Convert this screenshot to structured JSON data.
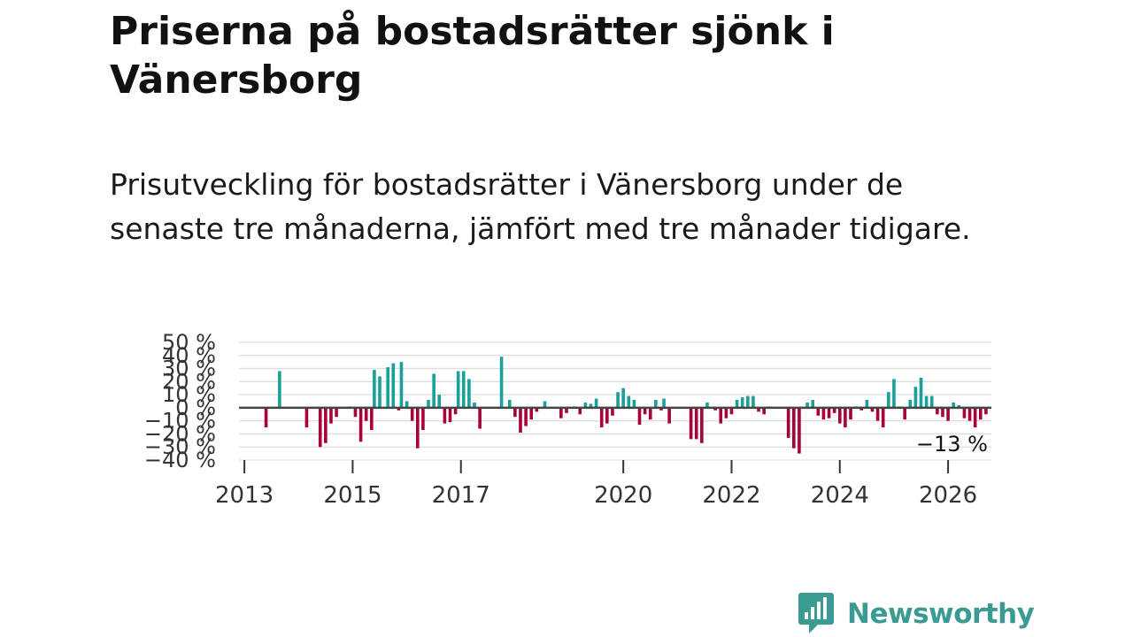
{
  "title": "Priserna på bostadsrätter sjönk i Vänersborg",
  "subtitle": "Prisutveckling för bostadsrätter i Vänersborg under de senaste tre månaderna, jämfört med tre månader tidigare.",
  "brand": {
    "name": "Newsworthy",
    "color": "#3a9b93",
    "icon": "newsworthy-logo-icon"
  },
  "colors": {
    "positive": "#1a9f99",
    "negative": "#a6003d",
    "grid": "#dddddd",
    "baseline": "#444444"
  },
  "chart_data": {
    "type": "bar",
    "title": "Priserna på bostadsrätter sjönk i Vänersborg",
    "ylabel": "",
    "xlabel": "",
    "ylim": [
      -40,
      50
    ],
    "xlim": [
      2012.9,
      2026.8
    ],
    "y_ticks": [
      {
        "value": 50,
        "label": "50 %"
      },
      {
        "value": 40,
        "label": "40 %"
      },
      {
        "value": 30,
        "label": "30 %"
      },
      {
        "value": 20,
        "label": "20 %"
      },
      {
        "value": 10,
        "label": "10 %"
      },
      {
        "value": 0,
        "label": "0 %"
      },
      {
        "value": -10,
        "label": "−10 %"
      },
      {
        "value": -20,
        "label": "−20 %"
      },
      {
        "value": -30,
        "label": "−30 %"
      },
      {
        "value": -40,
        "label": "−40 %"
      }
    ],
    "x_ticks": [
      {
        "value": 2013,
        "label": "2013"
      },
      {
        "value": 2015,
        "label": "2015"
      },
      {
        "value": 2017,
        "label": "2017"
      },
      {
        "value": 2020,
        "label": "2020"
      },
      {
        "value": 2022,
        "label": "2022"
      },
      {
        "value": 2024,
        "label": "2024"
      },
      {
        "value": 2026,
        "label": "2026"
      }
    ],
    "grid": true,
    "annotation": {
      "text": "−13 %",
      "date": 2026.17,
      "value": -13
    },
    "series": [
      {
        "name": "Prisutveckling",
        "points": [
          {
            "date": 2013.4,
            "value": -15
          },
          {
            "date": 2013.65,
            "value": 28
          },
          {
            "date": 2014.15,
            "value": -15
          },
          {
            "date": 2014.4,
            "value": -30
          },
          {
            "date": 2014.5,
            "value": -27
          },
          {
            "date": 2014.6,
            "value": -12
          },
          {
            "date": 2014.7,
            "value": -7
          },
          {
            "date": 2014.95,
            "value": 1
          },
          {
            "date": 2015.05,
            "value": -7
          },
          {
            "date": 2015.15,
            "value": -26
          },
          {
            "date": 2015.25,
            "value": -10
          },
          {
            "date": 2015.35,
            "value": -17
          },
          {
            "date": 2015.4,
            "value": 29
          },
          {
            "date": 2015.5,
            "value": 24
          },
          {
            "date": 2015.65,
            "value": 31
          },
          {
            "date": 2015.75,
            "value": 34
          },
          {
            "date": 2015.85,
            "value": -2
          },
          {
            "date": 2015.9,
            "value": 35
          },
          {
            "date": 2016.0,
            "value": 5
          },
          {
            "date": 2016.1,
            "value": -10
          },
          {
            "date": 2016.2,
            "value": -31
          },
          {
            "date": 2016.3,
            "value": -17
          },
          {
            "date": 2016.4,
            "value": 6
          },
          {
            "date": 2016.5,
            "value": 26
          },
          {
            "date": 2016.6,
            "value": 10
          },
          {
            "date": 2016.7,
            "value": -12
          },
          {
            "date": 2016.8,
            "value": -11
          },
          {
            "date": 2016.9,
            "value": -5
          },
          {
            "date": 2016.95,
            "value": 28
          },
          {
            "date": 2017.05,
            "value": 28
          },
          {
            "date": 2017.15,
            "value": 22
          },
          {
            "date": 2017.25,
            "value": 4
          },
          {
            "date": 2017.35,
            "value": -16
          },
          {
            "date": 2017.75,
            "value": 39
          },
          {
            "date": 2017.9,
            "value": 6
          },
          {
            "date": 2018.0,
            "value": -7
          },
          {
            "date": 2018.1,
            "value": -19
          },
          {
            "date": 2018.2,
            "value": -14
          },
          {
            "date": 2018.3,
            "value": -9
          },
          {
            "date": 2018.4,
            "value": -3
          },
          {
            "date": 2018.55,
            "value": 5
          },
          {
            "date": 2018.85,
            "value": -8
          },
          {
            "date": 2018.95,
            "value": -4
          },
          {
            "date": 2019.1,
            "value": 1
          },
          {
            "date": 2019.2,
            "value": -5
          },
          {
            "date": 2019.3,
            "value": 4
          },
          {
            "date": 2019.4,
            "value": 3
          },
          {
            "date": 2019.5,
            "value": 7
          },
          {
            "date": 2019.6,
            "value": -15
          },
          {
            "date": 2019.7,
            "value": -12
          },
          {
            "date": 2019.8,
            "value": -6
          },
          {
            "date": 2019.9,
            "value": 12
          },
          {
            "date": 2020.0,
            "value": 15
          },
          {
            "date": 2020.1,
            "value": 9
          },
          {
            "date": 2020.2,
            "value": 6
          },
          {
            "date": 2020.3,
            "value": -13
          },
          {
            "date": 2020.4,
            "value": -5
          },
          {
            "date": 2020.5,
            "value": -9
          },
          {
            "date": 2020.6,
            "value": 6
          },
          {
            "date": 2020.7,
            "value": -2
          },
          {
            "date": 2020.75,
            "value": 7
          },
          {
            "date": 2020.85,
            "value": -12
          },
          {
            "date": 2021.25,
            "value": -24
          },
          {
            "date": 2021.35,
            "value": -24
          },
          {
            "date": 2021.45,
            "value": -27
          },
          {
            "date": 2021.55,
            "value": 4
          },
          {
            "date": 2021.7,
            "value": -2
          },
          {
            "date": 2021.8,
            "value": -12
          },
          {
            "date": 2021.9,
            "value": -8
          },
          {
            "date": 2022.0,
            "value": -5
          },
          {
            "date": 2022.1,
            "value": 6
          },
          {
            "date": 2022.2,
            "value": 8
          },
          {
            "date": 2022.3,
            "value": 9
          },
          {
            "date": 2022.4,
            "value": 9
          },
          {
            "date": 2022.5,
            "value": -3
          },
          {
            "date": 2022.6,
            "value": -5
          },
          {
            "date": 2022.7,
            "value": 1
          },
          {
            "date": 2023.05,
            "value": -23
          },
          {
            "date": 2023.15,
            "value": -31
          },
          {
            "date": 2023.25,
            "value": -35
          },
          {
            "date": 2023.4,
            "value": 4
          },
          {
            "date": 2023.5,
            "value": 6
          },
          {
            "date": 2023.6,
            "value": -6
          },
          {
            "date": 2023.7,
            "value": -9
          },
          {
            "date": 2023.8,
            "value": -8
          },
          {
            "date": 2023.9,
            "value": -4
          },
          {
            "date": 2024.0,
            "value": -12
          },
          {
            "date": 2024.1,
            "value": -15
          },
          {
            "date": 2024.2,
            "value": -9
          },
          {
            "date": 2024.3,
            "value": 1
          },
          {
            "date": 2024.4,
            "value": -2
          },
          {
            "date": 2024.5,
            "value": 6
          },
          {
            "date": 2024.6,
            "value": -3
          },
          {
            "date": 2024.7,
            "value": -10
          },
          {
            "date": 2024.8,
            "value": -15
          },
          {
            "date": 2024.9,
            "value": 12
          },
          {
            "date": 2025.0,
            "value": 22
          },
          {
            "date": 2025.1,
            "value": 1
          },
          {
            "date": 2025.2,
            "value": -9
          },
          {
            "date": 2025.3,
            "value": 6
          },
          {
            "date": 2025.4,
            "value": 16
          },
          {
            "date": 2025.5,
            "value": 23
          },
          {
            "date": 2025.6,
            "value": 9
          },
          {
            "date": 2025.7,
            "value": 9
          },
          {
            "date": 2025.8,
            "value": -5
          },
          {
            "date": 2025.9,
            "value": -7
          },
          {
            "date": 2026.0,
            "value": -10
          },
          {
            "date": 2026.1,
            "value": 4
          },
          {
            "date": 2026.2,
            "value": 2
          },
          {
            "date": 2026.3,
            "value": -8
          },
          {
            "date": 2026.4,
            "value": -10
          },
          {
            "date": 2026.5,
            "value": -15
          },
          {
            "date": 2026.6,
            "value": -9
          },
          {
            "date": 2026.7,
            "value": -5
          }
        ]
      }
    ]
  }
}
